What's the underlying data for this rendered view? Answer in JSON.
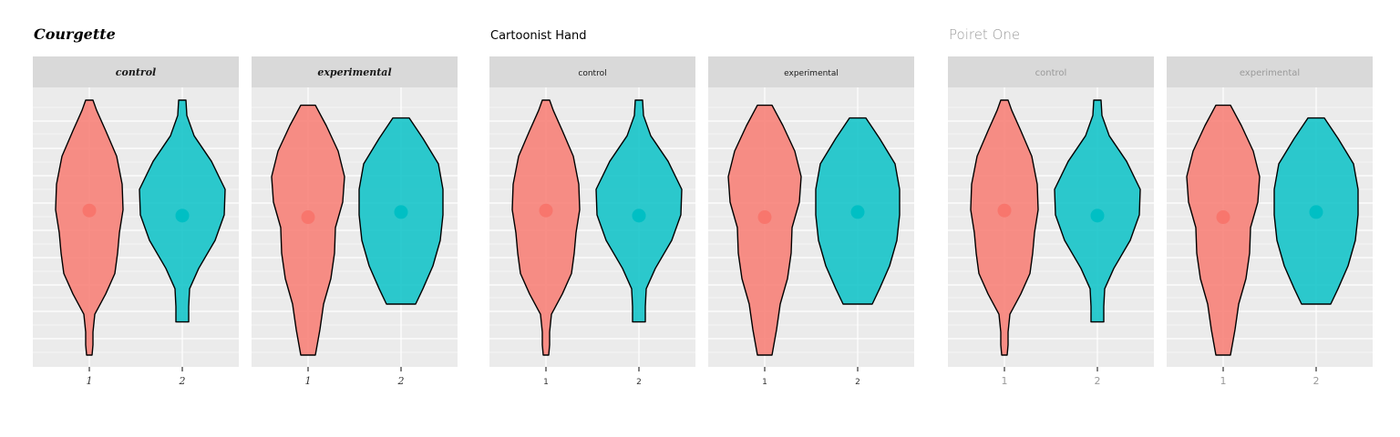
{
  "colors": {
    "panel_background": "#ebebeb",
    "strip_background": "#d9d9d9",
    "gridline": "#ffffff",
    "series_1_fill": "#f8766d",
    "series_2_fill": "#00bfc4",
    "outline": "#000000"
  },
  "chart_data": [
    {
      "type": "violin",
      "title": "Courgette",
      "facets": [
        "control",
        "experimental"
      ],
      "x_categories": [
        "1",
        "2"
      ],
      "y_tick_labels": [],
      "y_range": [
        0,
        1
      ],
      "grid": true,
      "legend": "none",
      "violins": [
        {
          "facet": "control",
          "x": "1",
          "point_y": 0.433,
          "profile": [
            [
              0.0,
              0.04
            ],
            [
              0.04,
              0.08
            ],
            [
              0.12,
              0.18
            ],
            [
              0.22,
              0.3
            ],
            [
              0.33,
              0.36
            ],
            [
              0.43,
              0.37
            ],
            [
              0.52,
              0.33
            ],
            [
              0.6,
              0.31
            ],
            [
              0.68,
              0.28
            ],
            [
              0.76,
              0.18
            ],
            [
              0.84,
              0.06
            ],
            [
              0.91,
              0.04
            ],
            [
              0.96,
              0.04
            ],
            [
              1.0,
              0.03
            ]
          ]
        },
        {
          "facet": "control",
          "x": "2",
          "point_y": 0.453,
          "profile": [
            [
              0.0,
              0.04
            ],
            [
              0.06,
              0.05
            ],
            [
              0.14,
              0.13
            ],
            [
              0.24,
              0.32
            ],
            [
              0.35,
              0.47
            ],
            [
              0.45,
              0.46
            ],
            [
              0.55,
              0.36
            ],
            [
              0.66,
              0.18
            ],
            [
              0.74,
              0.08
            ],
            [
              0.81,
              0.07
            ],
            [
              0.87,
              0.07
            ]
          ]
        },
        {
          "facet": "experimental",
          "x": "1",
          "point_y": 0.459,
          "profile": [
            [
              0.02,
              0.08
            ],
            [
              0.1,
              0.2
            ],
            [
              0.2,
              0.33
            ],
            [
              0.3,
              0.4
            ],
            [
              0.4,
              0.38
            ],
            [
              0.5,
              0.3
            ],
            [
              0.6,
              0.29
            ],
            [
              0.7,
              0.25
            ],
            [
              0.8,
              0.17
            ],
            [
              0.9,
              0.13
            ],
            [
              1.0,
              0.08
            ]
          ]
        },
        {
          "facet": "experimental",
          "x": "2",
          "point_y": 0.439,
          "profile": [
            [
              0.07,
              0.09
            ],
            [
              0.15,
              0.24
            ],
            [
              0.25,
              0.41
            ],
            [
              0.35,
              0.46
            ],
            [
              0.45,
              0.46
            ],
            [
              0.55,
              0.43
            ],
            [
              0.65,
              0.35
            ],
            [
              0.74,
              0.24
            ],
            [
              0.8,
              0.16
            ]
          ]
        }
      ]
    },
    {
      "type": "violin",
      "title": "Cartoonist Hand",
      "facets": [
        "control",
        "experimental"
      ],
      "x_categories": [
        "1",
        "2"
      ],
      "y_tick_labels": [],
      "y_range": [
        0,
        1
      ],
      "grid": true,
      "legend": "none",
      "violins": [
        {
          "facet": "control",
          "x": "1",
          "point_y": 0.433,
          "profile": [
            [
              0.0,
              0.04
            ],
            [
              0.04,
              0.08
            ],
            [
              0.12,
              0.18
            ],
            [
              0.22,
              0.3
            ],
            [
              0.33,
              0.36
            ],
            [
              0.43,
              0.37
            ],
            [
              0.52,
              0.33
            ],
            [
              0.6,
              0.31
            ],
            [
              0.68,
              0.28
            ],
            [
              0.76,
              0.18
            ],
            [
              0.84,
              0.06
            ],
            [
              0.91,
              0.04
            ],
            [
              0.96,
              0.04
            ],
            [
              1.0,
              0.03
            ]
          ]
        },
        {
          "facet": "control",
          "x": "2",
          "point_y": 0.453,
          "profile": [
            [
              0.0,
              0.04
            ],
            [
              0.06,
              0.05
            ],
            [
              0.14,
              0.13
            ],
            [
              0.24,
              0.32
            ],
            [
              0.35,
              0.47
            ],
            [
              0.45,
              0.46
            ],
            [
              0.55,
              0.36
            ],
            [
              0.66,
              0.18
            ],
            [
              0.74,
              0.08
            ],
            [
              0.81,
              0.07
            ],
            [
              0.87,
              0.07
            ]
          ]
        },
        {
          "facet": "experimental",
          "x": "1",
          "point_y": 0.459,
          "profile": [
            [
              0.02,
              0.08
            ],
            [
              0.1,
              0.2
            ],
            [
              0.2,
              0.33
            ],
            [
              0.3,
              0.4
            ],
            [
              0.4,
              0.38
            ],
            [
              0.5,
              0.3
            ],
            [
              0.6,
              0.29
            ],
            [
              0.7,
              0.25
            ],
            [
              0.8,
              0.17
            ],
            [
              0.9,
              0.13
            ],
            [
              1.0,
              0.08
            ]
          ]
        },
        {
          "facet": "experimental",
          "x": "2",
          "point_y": 0.439,
          "profile": [
            [
              0.07,
              0.09
            ],
            [
              0.15,
              0.24
            ],
            [
              0.25,
              0.41
            ],
            [
              0.35,
              0.46
            ],
            [
              0.45,
              0.46
            ],
            [
              0.55,
              0.43
            ],
            [
              0.65,
              0.35
            ],
            [
              0.74,
              0.24
            ],
            [
              0.8,
              0.16
            ]
          ]
        }
      ]
    },
    {
      "type": "violin",
      "title": "Poiret One",
      "facets": [
        "control",
        "experimental"
      ],
      "x_categories": [
        "1",
        "2"
      ],
      "y_tick_labels": [],
      "y_range": [
        0,
        1
      ],
      "grid": true,
      "legend": "none",
      "violins": [
        {
          "facet": "control",
          "x": "1",
          "point_y": 0.433,
          "profile": [
            [
              0.0,
              0.04
            ],
            [
              0.04,
              0.08
            ],
            [
              0.12,
              0.18
            ],
            [
              0.22,
              0.3
            ],
            [
              0.33,
              0.36
            ],
            [
              0.43,
              0.37
            ],
            [
              0.52,
              0.33
            ],
            [
              0.6,
              0.31
            ],
            [
              0.68,
              0.28
            ],
            [
              0.76,
              0.18
            ],
            [
              0.84,
              0.06
            ],
            [
              0.91,
              0.04
            ],
            [
              0.96,
              0.04
            ],
            [
              1.0,
              0.03
            ]
          ]
        },
        {
          "facet": "control",
          "x": "2",
          "point_y": 0.453,
          "profile": [
            [
              0.0,
              0.04
            ],
            [
              0.06,
              0.05
            ],
            [
              0.14,
              0.13
            ],
            [
              0.24,
              0.32
            ],
            [
              0.35,
              0.47
            ],
            [
              0.45,
              0.46
            ],
            [
              0.55,
              0.36
            ],
            [
              0.66,
              0.18
            ],
            [
              0.74,
              0.08
            ],
            [
              0.81,
              0.07
            ],
            [
              0.87,
              0.07
            ]
          ]
        },
        {
          "facet": "experimental",
          "x": "1",
          "point_y": 0.459,
          "profile": [
            [
              0.02,
              0.08
            ],
            [
              0.1,
              0.2
            ],
            [
              0.2,
              0.33
            ],
            [
              0.3,
              0.4
            ],
            [
              0.4,
              0.38
            ],
            [
              0.5,
              0.3
            ],
            [
              0.6,
              0.29
            ],
            [
              0.7,
              0.25
            ],
            [
              0.8,
              0.17
            ],
            [
              0.9,
              0.13
            ],
            [
              1.0,
              0.08
            ]
          ]
        },
        {
          "facet": "experimental",
          "x": "2",
          "point_y": 0.439,
          "profile": [
            [
              0.07,
              0.09
            ],
            [
              0.15,
              0.24
            ],
            [
              0.25,
              0.41
            ],
            [
              0.35,
              0.46
            ],
            [
              0.45,
              0.46
            ],
            [
              0.55,
              0.43
            ],
            [
              0.65,
              0.35
            ],
            [
              0.74,
              0.24
            ],
            [
              0.8,
              0.16
            ]
          ]
        }
      ]
    }
  ]
}
